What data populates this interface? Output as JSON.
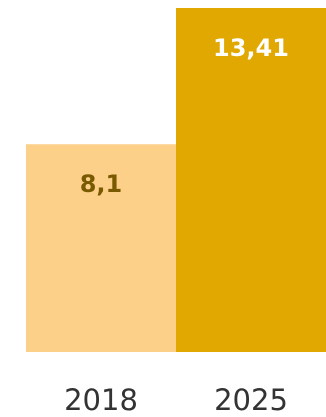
{
  "chart_data": {
    "type": "bar",
    "categories": [
      "2018",
      "2025"
    ],
    "values": [
      8.1,
      13.41
    ],
    "value_labels": [
      "8,1",
      "13,41"
    ],
    "bar_colors": [
      "#fdd08a",
      "#e0a800"
    ],
    "label_colors": [
      "#7a5a00",
      "#ffffff"
    ],
    "title": "",
    "xlabel": "",
    "ylabel": "",
    "ylim": [
      0,
      13.41
    ],
    "grid": false,
    "legend": "none"
  }
}
